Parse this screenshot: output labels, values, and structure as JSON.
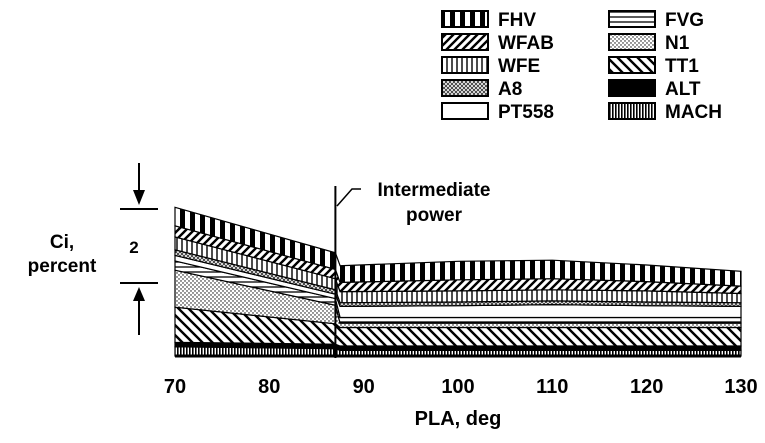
{
  "chart_data": {
    "type": "area",
    "stacked": true,
    "xlabel": "PLA, deg",
    "ylabel": "Ci,\npercent",
    "scale_marker": {
      "label": "2",
      "value": 2,
      "from": 2,
      "to": 4
    },
    "annotation": {
      "text": [
        "Intermediate",
        "power"
      ],
      "x": 87
    },
    "x": [
      70,
      87,
      87.5,
      100,
      110,
      120,
      130
    ],
    "xticks": [
      70,
      80,
      90,
      100,
      110,
      120,
      130
    ],
    "xlim": [
      70,
      130
    ],
    "ylim": [
      0,
      6.2
    ],
    "series": [
      {
        "name": "MACH",
        "pattern": "vert-dense",
        "values": [
          0.25,
          0.2,
          0.15,
          0.15,
          0.15,
          0.15,
          0.15
        ]
      },
      {
        "name": "ALT",
        "pattern": "solid-black",
        "values": [
          0.12,
          0.12,
          0.12,
          0.12,
          0.12,
          0.12,
          0.12
        ]
      },
      {
        "name": "TT1",
        "pattern": "diag-down",
        "values": [
          0.95,
          0.55,
          0.5,
          0.5,
          0.5,
          0.5,
          0.5
        ]
      },
      {
        "name": "N1",
        "pattern": "dots",
        "values": [
          1.0,
          0.5,
          0.12,
          0.12,
          0.12,
          0.12,
          0.12
        ]
      },
      {
        "name": "FVG",
        "pattern": "horiz-lines",
        "values": [
          0.25,
          0.18,
          0.15,
          0.15,
          0.15,
          0.15,
          0.15
        ]
      },
      {
        "name": "PT558",
        "pattern": "blank",
        "values": [
          0.15,
          0.12,
          0.3,
          0.32,
          0.35,
          0.32,
          0.3
        ]
      },
      {
        "name": "A8",
        "pattern": "crosshatch",
        "values": [
          0.15,
          0.12,
          0.1,
          0.1,
          0.1,
          0.1,
          0.1
        ]
      },
      {
        "name": "WFE",
        "pattern": "vert-lines",
        "values": [
          0.35,
          0.3,
          0.3,
          0.3,
          0.3,
          0.3,
          0.25
        ]
      },
      {
        "name": "WFAB",
        "pattern": "diag-up",
        "values": [
          0.3,
          0.25,
          0.25,
          0.3,
          0.3,
          0.25,
          0.2
        ]
      },
      {
        "name": "FHV",
        "pattern": "bars-bold",
        "values": [
          0.5,
          0.45,
          0.45,
          0.5,
          0.5,
          0.45,
          0.4
        ]
      }
    ],
    "legend": {
      "placement": "top-right",
      "columns": [
        [
          "FHV",
          "WFAB",
          "WFE",
          "A8",
          "PT558"
        ],
        [
          "FVG",
          "N1",
          "TT1",
          "ALT",
          "MACH"
        ]
      ]
    }
  }
}
